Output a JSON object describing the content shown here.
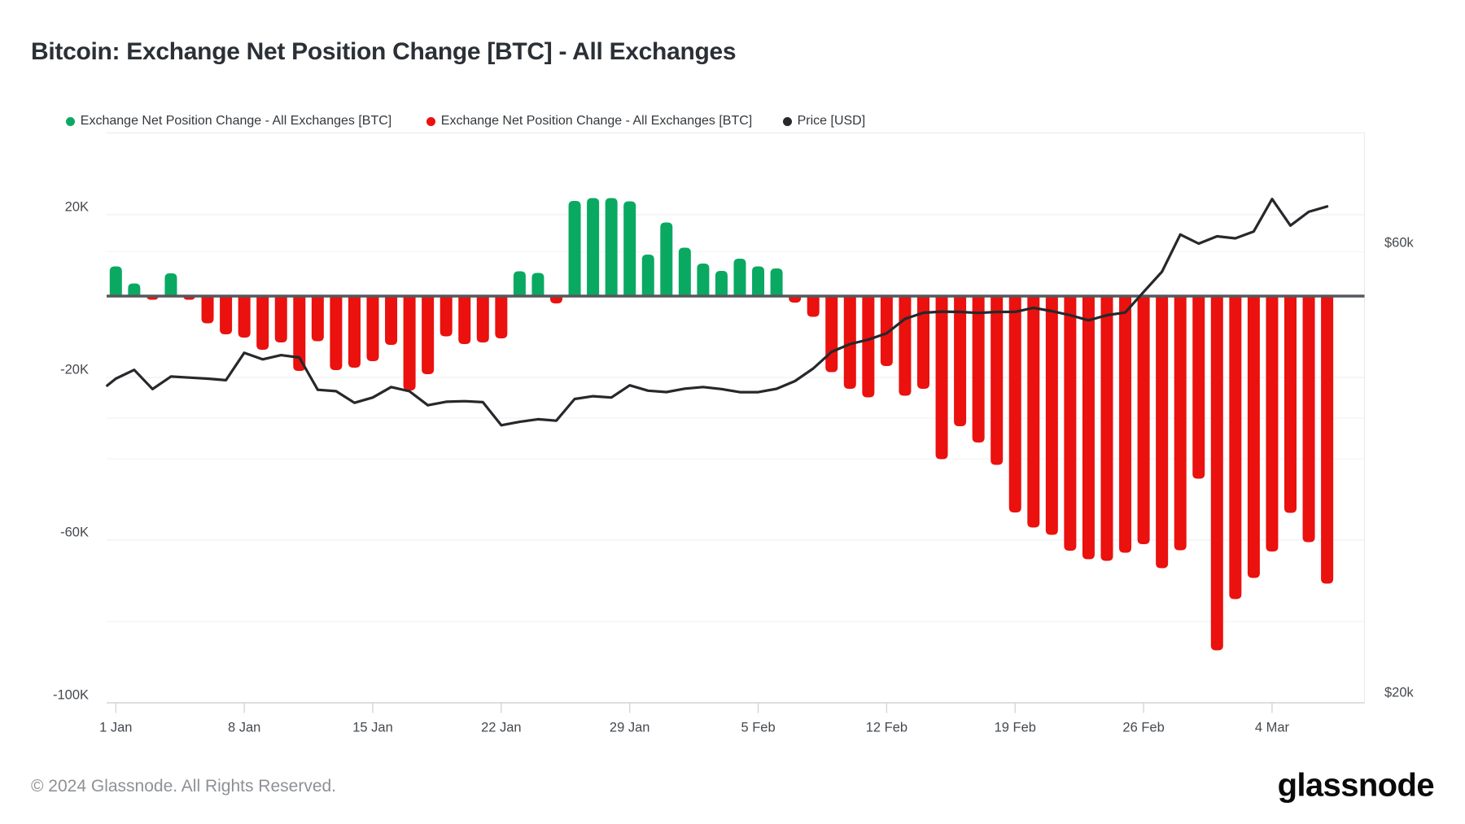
{
  "title": "Bitcoin: Exchange Net Position Change [BTC] - All Exchanges",
  "legend": {
    "items": [
      {
        "label": "Exchange Net Position Change - All Exchanges [BTC]",
        "color": "#0AA962"
      },
      {
        "label": "Exchange Net Position Change - All Exchanges [BTC]",
        "color": "#EA110E"
      },
      {
        "label": "Price [USD]",
        "color": "#26282B"
      }
    ]
  },
  "footer": {
    "copyright": "© 2024 Glassnode. All Rights Reserved.",
    "brand": "glassnode"
  },
  "chart_data": {
    "type": "bar",
    "title": "Bitcoin: Exchange Net Position Change [BTC] - All Exchanges",
    "categories": [
      "1 Jan",
      "2 Jan",
      "3 Jan",
      "4 Jan",
      "5 Jan",
      "6 Jan",
      "7 Jan",
      "8 Jan",
      "9 Jan",
      "10 Jan",
      "11 Jan",
      "12 Jan",
      "13 Jan",
      "14 Jan",
      "15 Jan",
      "16 Jan",
      "17 Jan",
      "18 Jan",
      "19 Jan",
      "20 Jan",
      "21 Jan",
      "22 Jan",
      "23 Jan",
      "24 Jan",
      "25 Jan",
      "26 Jan",
      "27 Jan",
      "28 Jan",
      "29 Jan",
      "30 Jan",
      "31 Jan",
      "1 Feb",
      "2 Feb",
      "3 Feb",
      "4 Feb",
      "5 Feb",
      "6 Feb",
      "7 Feb",
      "8 Feb",
      "9 Feb",
      "10 Feb",
      "11 Feb",
      "12 Feb",
      "13 Feb",
      "14 Feb",
      "15 Feb",
      "16 Feb",
      "17 Feb",
      "18 Feb",
      "19 Feb",
      "20 Feb",
      "21 Feb",
      "22 Feb",
      "23 Feb",
      "24 Feb",
      "25 Feb",
      "26 Feb",
      "27 Feb",
      "28 Feb",
      "29 Feb",
      "1 Mar",
      "2 Mar",
      "3 Mar",
      "4 Mar",
      "5 Mar",
      "6 Mar",
      "7 Mar"
    ],
    "series": [
      {
        "name": "Exchange Net Position Change - All Exchanges [BTC]",
        "type": "bar",
        "unit": "thousand BTC",
        "color_positive": "#0AA962",
        "color_negative": "#EA110E",
        "values": [
          7.3,
          3.1,
          -0.9,
          5.6,
          -0.9,
          -6.7,
          -9.4,
          -10.2,
          -13.2,
          -11.4,
          -18.4,
          -11.1,
          -18.2,
          -17.6,
          -16.0,
          -12.0,
          -23.2,
          -19.2,
          -9.9,
          -11.8,
          -11.4,
          -10.4,
          6.1,
          5.7,
          -1.8,
          23.4,
          24.1,
          24.1,
          23.3,
          10.2,
          18.1,
          11.9,
          8.0,
          6.2,
          9.2,
          7.3,
          6.8,
          -1.6,
          -5.1,
          -18.7,
          -22.8,
          -24.9,
          -17.2,
          -24.5,
          -22.8,
          -40.1,
          -32.0,
          -36.0,
          -41.5,
          -53.2,
          -56.9,
          -58.7,
          -62.6,
          -64.7,
          -65.1,
          -63.1,
          -61.0,
          -66.9,
          -62.5,
          -44.9,
          -87.1,
          -74.5,
          -69.3,
          -62.8,
          -53.3,
          -60.5,
          -70.7
        ]
      },
      {
        "name": "Price [USD]",
        "type": "line",
        "unit": "USD (thousands)",
        "color": "#26282B",
        "axis": "right",
        "values": [
          48.75,
          49.53,
          47.83,
          48.94,
          48.84,
          48.75,
          48.61,
          51.04,
          50.46,
          50.83,
          50.62,
          47.76,
          47.64,
          46.61,
          47.08,
          48.01,
          47.63,
          46.39,
          46.7,
          46.75,
          46.67,
          44.62,
          44.92,
          45.15,
          45.02,
          46.95,
          47.19,
          47.08,
          48.16,
          47.68,
          47.56,
          47.86,
          48.01,
          47.83,
          47.55,
          47.55,
          47.85,
          48.53,
          49.65,
          51.13,
          51.81,
          52.21,
          52.77,
          54.05,
          54.59,
          54.69,
          54.66,
          54.57,
          54.66,
          54.67,
          55.03,
          54.73,
          54.37,
          53.92,
          54.37,
          54.61,
          56.43,
          58.23,
          61.52,
          60.71,
          61.36,
          61.18,
          61.79,
          64.66,
          62.31,
          63.53,
          64.01
        ],
        "leading_edge_point": {
          "day_offset": -0.47,
          "value": 48.14
        }
      }
    ],
    "xlabel": "",
    "ylabel_left": "",
    "ylabel_right": "",
    "x_ticks": [
      {
        "label": "1 Jan",
        "day": 0
      },
      {
        "label": "8 Jan",
        "day": 7
      },
      {
        "label": "15 Jan",
        "day": 14
      },
      {
        "label": "22 Jan",
        "day": 21
      },
      {
        "label": "29 Jan",
        "day": 28
      },
      {
        "label": "5 Feb",
        "day": 35
      },
      {
        "label": "12 Feb",
        "day": 42
      },
      {
        "label": "19 Feb",
        "day": 49
      },
      {
        "label": "26 Feb",
        "day": 56
      },
      {
        "label": "4 Mar",
        "day": 63
      }
    ],
    "y_axis_left": {
      "ticks": [
        {
          "label": "20K",
          "value": 20
        },
        {
          "label": "-20K",
          "value": -20
        },
        {
          "label": "-60K",
          "value": -60
        },
        {
          "label": "-100K",
          "value": -100
        }
      ],
      "minor_gridline_values": [
        -30,
        -40,
        -80
      ],
      "range": [
        -100,
        40.1
      ]
    },
    "y_axis_right": {
      "ticks": [
        {
          "label": "$60k",
          "value": 60
        },
        {
          "label": "$20k",
          "value": 20
        }
      ],
      "range": [
        20,
        74.5
      ]
    },
    "grid": true,
    "legend_position": "top",
    "zero_line_value": 0
  }
}
